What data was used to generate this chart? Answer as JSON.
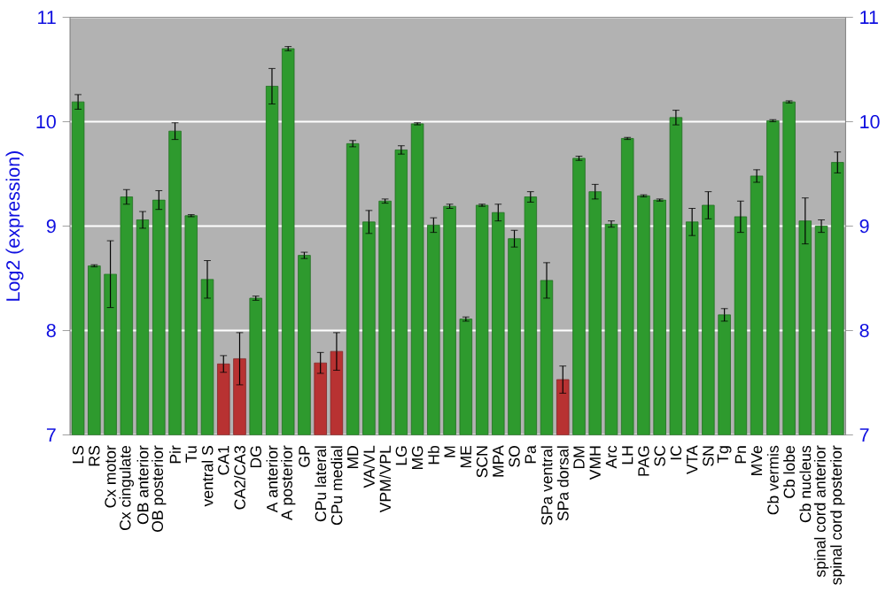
{
  "chart_data": {
    "type": "bar",
    "ylabel": "Log2 (expression)",
    "categories": [
      "LS",
      "RS",
      "Cx motor",
      "Cx cingulate",
      "OB anterior",
      "OB posterior",
      "Pir",
      "Tu",
      "ventral S",
      "CA1",
      "CA2/CA3",
      "DG",
      "A anterior",
      "A posterior",
      "GP",
      "CPu lateral",
      "CPu medial",
      "MD",
      "VA/VL",
      "VPM/VPL",
      "LG",
      "MG",
      "Hb",
      "M",
      "ME",
      "SCN",
      "MPA",
      "SO",
      "Pa",
      "SPa ventral",
      "SPa dorsal",
      "DM",
      "VMH",
      "Arc",
      "LH",
      "PAG",
      "SC",
      "IC",
      "VTA",
      "SN",
      "Tg",
      "Pn",
      "MVe",
      "Cb vermis",
      "Cb lobe",
      "Cb nucleus",
      "spinal cord anterior",
      "spinal cord posterior"
    ],
    "values": [
      10.19,
      8.62,
      8.54,
      9.28,
      9.06,
      9.25,
      9.91,
      9.1,
      8.49,
      7.68,
      7.73,
      8.31,
      10.34,
      10.7,
      8.72,
      7.69,
      7.8,
      9.79,
      9.04,
      9.24,
      9.73,
      9.98,
      9.01,
      9.19,
      8.11,
      9.2,
      9.13,
      8.88,
      9.28,
      8.48,
      7.53,
      9.65,
      9.33,
      9.02,
      9.84,
      9.29,
      9.25,
      10.04,
      9.04,
      9.2,
      8.15,
      9.09,
      9.48,
      10.01,
      10.19,
      9.05,
      9.0,
      9.61
    ],
    "errors": [
      0.07,
      0.01,
      0.32,
      0.07,
      0.08,
      0.09,
      0.08,
      0.01,
      0.18,
      0.08,
      0.25,
      0.02,
      0.17,
      0.02,
      0.03,
      0.1,
      0.18,
      0.03,
      0.11,
      0.02,
      0.04,
      0.01,
      0.07,
      0.02,
      0.02,
      0.01,
      0.08,
      0.08,
      0.05,
      0.17,
      0.13,
      0.02,
      0.07,
      0.03,
      0.01,
      0.01,
      0.01,
      0.07,
      0.13,
      0.13,
      0.06,
      0.15,
      0.06,
      0.01,
      0.01,
      0.22,
      0.06,
      0.1
    ],
    "colors": [
      "#2e9a2e",
      "#2e9a2e",
      "#2e9a2e",
      "#2e9a2e",
      "#2e9a2e",
      "#2e9a2e",
      "#2e9a2e",
      "#2e9a2e",
      "#2e9a2e",
      "#b83232",
      "#b83232",
      "#2e9a2e",
      "#2e9a2e",
      "#2e9a2e",
      "#2e9a2e",
      "#b83232",
      "#b83232",
      "#2e9a2e",
      "#2e9a2e",
      "#2e9a2e",
      "#2e9a2e",
      "#2e9a2e",
      "#2e9a2e",
      "#2e9a2e",
      "#2e9a2e",
      "#2e9a2e",
      "#2e9a2e",
      "#2e9a2e",
      "#2e9a2e",
      "#2e9a2e",
      "#b83232",
      "#2e9a2e",
      "#2e9a2e",
      "#2e9a2e",
      "#2e9a2e",
      "#2e9a2e",
      "#2e9a2e",
      "#2e9a2e",
      "#2e9a2e",
      "#2e9a2e",
      "#2e9a2e",
      "#2e9a2e",
      "#2e9a2e",
      "#2e9a2e",
      "#2e9a2e",
      "#2e9a2e",
      "#2e9a2e",
      "#2e9a2e"
    ],
    "ylim": [
      7,
      11
    ],
    "yticks": [
      7,
      8,
      9,
      10,
      11
    ],
    "y2lim": [
      7,
      11
    ],
    "y2ticks": [
      7,
      8,
      9,
      10,
      11
    ],
    "grid": "y"
  }
}
